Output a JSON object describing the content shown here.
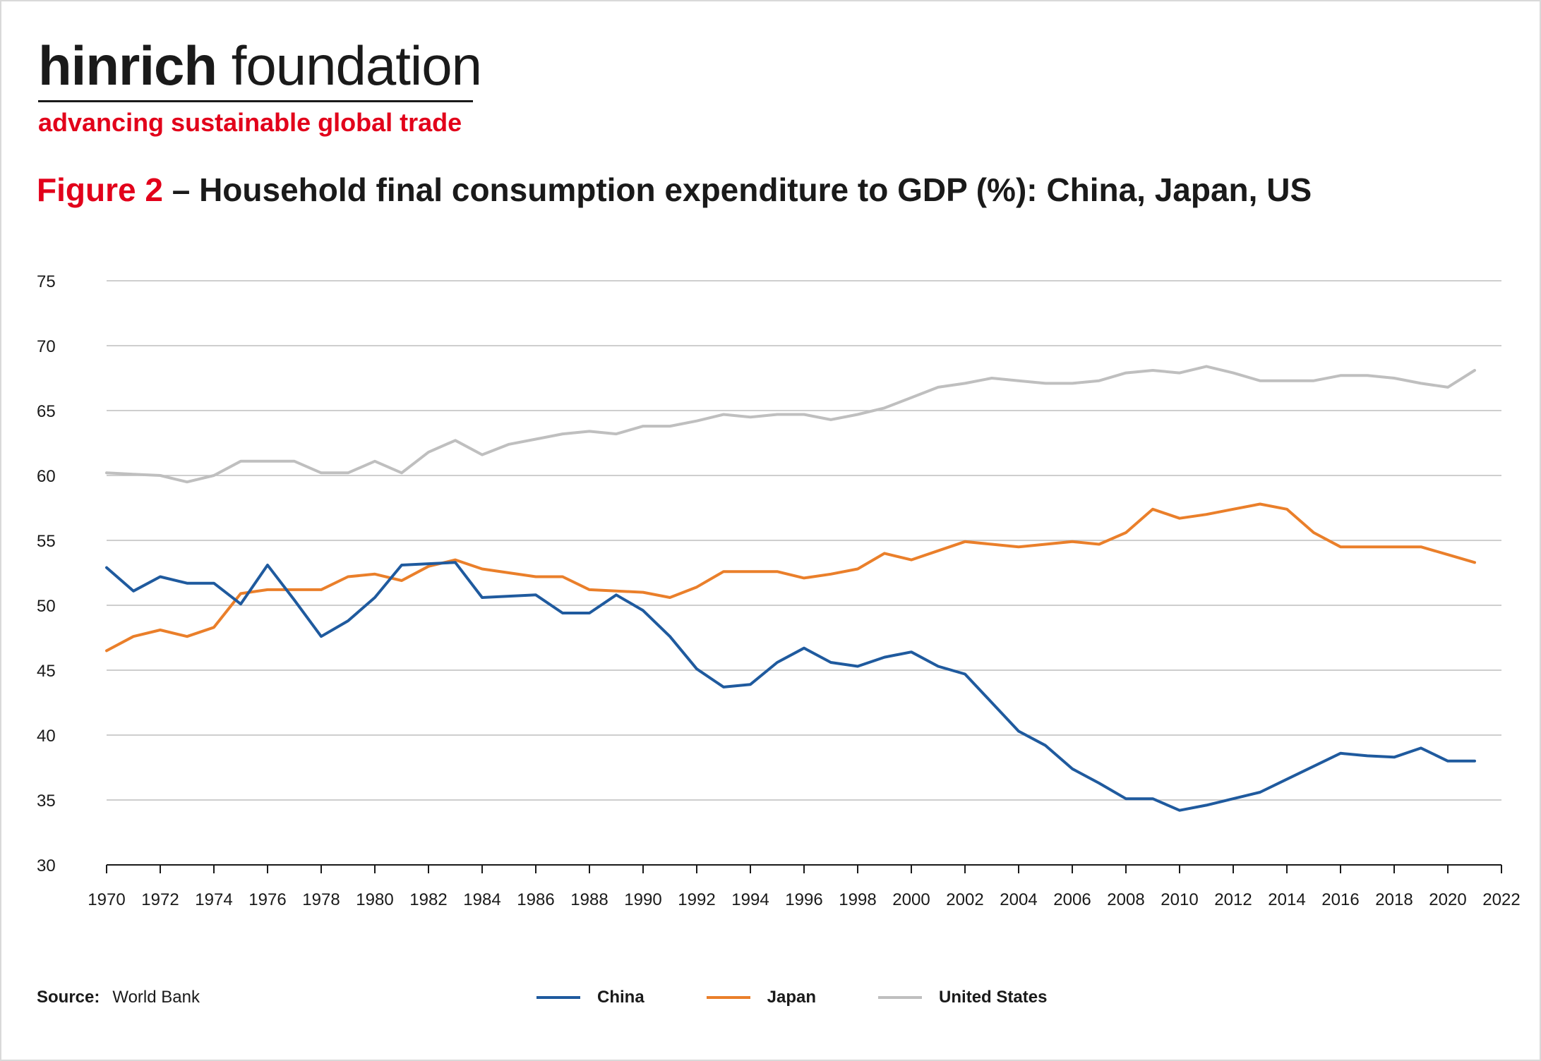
{
  "brand": {
    "name_bold": "hinrich",
    "name_light": "foundation",
    "tagline": "advancing sustainable global trade"
  },
  "figure": {
    "label": "Figure 2",
    "title": "– Household final consumption expenditure to GDP (%): China, Japan, US"
  },
  "source": {
    "label": "Source:",
    "value": "World Bank"
  },
  "colors": {
    "china": "#1f5a9e",
    "japan": "#ea7f2a",
    "us": "#bfbfbf",
    "grid": "#bdbdbd",
    "brand_red": "#e2001a"
  },
  "chart_data": {
    "type": "line",
    "title": "– Household final consumption expenditure to GDP (%): China, Japan, US",
    "xlabel": "",
    "ylabel": "",
    "xlim": [
      1970,
      2022
    ],
    "ylim": [
      30,
      75
    ],
    "y_ticks": [
      30,
      35,
      40,
      45,
      50,
      55,
      60,
      65,
      70,
      75
    ],
    "x_ticks": [
      1970,
      1972,
      1974,
      1976,
      1978,
      1980,
      1982,
      1984,
      1986,
      1988,
      1990,
      1992,
      1994,
      1996,
      1998,
      2000,
      2002,
      2004,
      2006,
      2008,
      2010,
      2012,
      2014,
      2016,
      2018,
      2020,
      2022
    ],
    "grid": true,
    "legend": "bottom",
    "x": [
      1970,
      1971,
      1972,
      1973,
      1974,
      1975,
      1976,
      1977,
      1978,
      1979,
      1980,
      1981,
      1982,
      1983,
      1984,
      1985,
      1986,
      1987,
      1988,
      1989,
      1990,
      1991,
      1992,
      1993,
      1994,
      1995,
      1996,
      1997,
      1998,
      1999,
      2000,
      2001,
      2002,
      2003,
      2004,
      2005,
      2006,
      2007,
      2008,
      2009,
      2010,
      2011,
      2012,
      2013,
      2014,
      2015,
      2016,
      2017,
      2018,
      2019,
      2020,
      2021
    ],
    "series": [
      {
        "name": "China",
        "color": "#1f5a9e",
        "values": [
          52.9,
          51.1,
          52.2,
          51.7,
          51.7,
          50.1,
          53.1,
          50.4,
          47.6,
          48.8,
          50.6,
          53.1,
          53.2,
          53.3,
          50.6,
          50.7,
          50.8,
          49.4,
          49.4,
          50.8,
          49.6,
          47.6,
          45.1,
          43.7,
          43.9,
          45.6,
          46.7,
          45.6,
          45.3,
          46.0,
          46.4,
          45.3,
          44.7,
          42.5,
          40.3,
          39.2,
          37.4,
          36.3,
          35.1,
          35.1,
          34.2,
          34.6,
          35.1,
          35.6,
          36.6,
          37.6,
          38.6,
          38.4,
          38.3,
          39.0,
          38.0,
          38.0
        ]
      },
      {
        "name": "Japan",
        "color": "#ea7f2a",
        "values": [
          46.5,
          47.6,
          48.1,
          47.6,
          48.3,
          50.9,
          51.2,
          51.2,
          51.2,
          52.2,
          52.4,
          51.9,
          53.0,
          53.5,
          52.8,
          52.5,
          52.2,
          52.2,
          51.2,
          51.1,
          51.0,
          50.6,
          51.4,
          52.6,
          52.6,
          52.6,
          52.1,
          52.4,
          52.8,
          54.0,
          53.5,
          54.2,
          54.9,
          54.7,
          54.5,
          54.7,
          54.9,
          54.7,
          55.6,
          57.4,
          56.7,
          57.0,
          57.4,
          57.8,
          57.4,
          55.6,
          54.5,
          54.5,
          54.5,
          54.5,
          53.9,
          53.3
        ]
      },
      {
        "name": "United States",
        "color": "#bfbfbf",
        "values": [
          60.2,
          60.1,
          60.0,
          59.5,
          60.0,
          61.1,
          61.1,
          61.1,
          60.2,
          60.2,
          61.1,
          60.2,
          61.8,
          62.7,
          61.6,
          62.4,
          62.8,
          63.2,
          63.4,
          63.2,
          63.8,
          63.8,
          64.2,
          64.7,
          64.5,
          64.7,
          64.7,
          64.3,
          64.7,
          65.2,
          66.0,
          66.8,
          67.1,
          67.5,
          67.3,
          67.1,
          67.1,
          67.3,
          67.9,
          68.1,
          67.9,
          68.4,
          67.9,
          67.3,
          67.3,
          67.3,
          67.7,
          67.7,
          67.5,
          67.1,
          66.8,
          68.1
        ]
      }
    ]
  }
}
